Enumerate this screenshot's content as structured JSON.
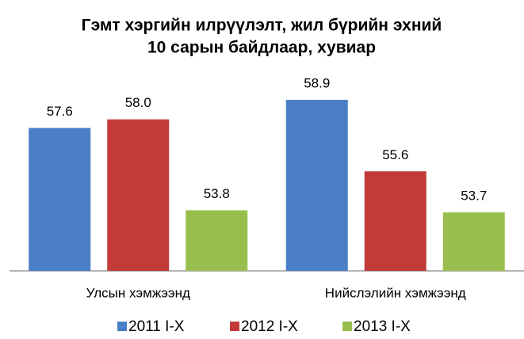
{
  "chart_data": {
    "type": "bar",
    "title": [
      "Гэмт хэргийн илрүүлэлт, жил бүрийн эхний",
      "10 сарын байдлаар, хувиар"
    ],
    "categories": [
      "Улсын хэмжээнд",
      "Нийслэлийн хэмжээнд"
    ],
    "series": [
      {
        "name": "2011 I-X",
        "color": "#4a7ec6",
        "values": [
          57.6,
          58.9
        ]
      },
      {
        "name": "2012 I-X",
        "color": "#c23b3a",
        "values": [
          58,
          55.6
        ],
        "value_labels": [
          "58.0",
          "55.6"
        ]
      },
      {
        "name": "2013 I-X",
        "color": "#98bf4e",
        "values": [
          53.8,
          53.7
        ]
      }
    ],
    "ylim": [
      51,
      60
    ],
    "legend": "bottom",
    "grid": false
  }
}
